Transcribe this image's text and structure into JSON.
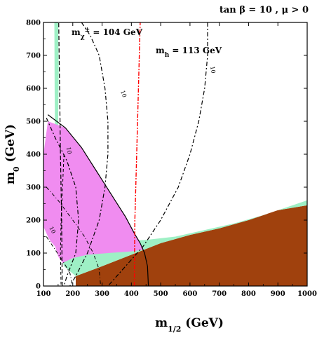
{
  "chart_data": {
    "type": "area",
    "header": "tan β = 10 , μ > 0",
    "xlabel_main": "m",
    "xlabel_sub": "1/2",
    "xlabel_unit": " (GeV)",
    "ylabel_main": "m",
    "ylabel_sub": "0",
    "ylabel_unit": " (GeV)",
    "xlim": [
      100,
      1000
    ],
    "ylim": [
      0,
      800
    ],
    "x_ticks": [
      100,
      200,
      300,
      400,
      500,
      600,
      700,
      800,
      900,
      1000
    ],
    "y_ticks": [
      0,
      100,
      200,
      300,
      400,
      500,
      600,
      700,
      800
    ],
    "colors": {
      "charged_lsp": "#a0410d",
      "relic_density": "#9ef0c5",
      "g_minus_2": "#f08cf0",
      "higgs": "#ff0000",
      "contour": "#000000"
    },
    "annotations": {
      "chargino_main": "m",
      "chargino_sub": "χ",
      "chargino_sup": "±",
      "chargino_value": " = 104 GeV",
      "higgs_main": "m",
      "higgs_sub": "h",
      "higgs_value": "  = 113 GeV"
    },
    "contour_labels": [
      "10",
      "10",
      "10",
      "10"
    ],
    "regions": {
      "charged_lsp": [
        [
          210,
          0
        ],
        [
          210,
          30
        ],
        [
          300,
          60
        ],
        [
          400,
          95
        ],
        [
          500,
          130
        ],
        [
          600,
          155
        ],
        [
          700,
          175
        ],
        [
          800,
          200
        ],
        [
          900,
          230
        ],
        [
          1000,
          245
        ],
        [
          1000,
          0
        ]
      ],
      "relic_density_band": [
        [
          150,
          190
        ],
        [
          180,
          160
        ],
        [
          250,
          145
        ],
        [
          350,
          135
        ],
        [
          450,
          140
        ],
        [
          550,
          150
        ],
        [
          650,
          170
        ],
        [
          750,
          190
        ],
        [
          850,
          215
        ],
        [
          950,
          245
        ],
        [
          1000,
          260
        ],
        [
          1000,
          245
        ],
        [
          900,
          230
        ],
        [
          800,
          200
        ],
        [
          700,
          175
        ],
        [
          600,
          155
        ],
        [
          500,
          130
        ],
        [
          400,
          95
        ],
        [
          300,
          60
        ],
        [
          210,
          30
        ],
        [
          170,
          60
        ],
        [
          150,
          130
        ]
      ],
      "relic_density_strip": [
        [
          137,
          800
        ],
        [
          150,
          800
        ],
        [
          152,
          650
        ],
        [
          150,
          500
        ],
        [
          150,
          350
        ],
        [
          145,
          200
        ],
        [
          137,
          180
        ],
        [
          140,
          400
        ],
        [
          138,
          600
        ]
      ],
      "g_minus_2": [
        [
          115,
          500
        ],
        [
          175,
          480
        ],
        [
          230,
          420
        ],
        [
          280,
          350
        ],
        [
          330,
          280
        ],
        [
          380,
          210
        ],
        [
          410,
          160
        ],
        [
          430,
          130
        ],
        [
          440,
          110
        ],
        [
          400,
          105
        ],
        [
          320,
          100
        ],
        [
          250,
          95
        ],
        [
          200,
          85
        ],
        [
          165,
          70
        ],
        [
          150,
          90
        ],
        [
          140,
          120
        ],
        [
          125,
          135
        ],
        [
          115,
          150
        ],
        [
          100,
          180
        ],
        [
          100,
          400
        ]
      ]
    },
    "lines": {
      "chargino_104": [
        [
          164,
          0
        ],
        [
          162,
          200
        ],
        [
          158,
          400
        ],
        [
          155,
          600
        ],
        [
          152,
          800
        ]
      ],
      "higgs_113": [
        [
          410,
          0
        ],
        [
          412,
          200
        ],
        [
          418,
          400
        ],
        [
          424,
          600
        ],
        [
          430,
          800
        ]
      ],
      "g2_boundary": [
        [
          115,
          520
        ],
        [
          175,
          480
        ],
        [
          230,
          420
        ],
        [
          280,
          350
        ],
        [
          330,
          280
        ],
        [
          380,
          210
        ],
        [
          410,
          160
        ],
        [
          430,
          130
        ],
        [
          445,
          100
        ],
        [
          455,
          60
        ],
        [
          458,
          0
        ]
      ],
      "contour_inner": [
        [
          110,
          150
        ],
        [
          140,
          110
        ],
        [
          170,
          70
        ],
        [
          190,
          40
        ],
        [
          200,
          0
        ]
      ],
      "contour_a": [
        [
          110,
          300
        ],
        [
          150,
          260
        ],
        [
          200,
          200
        ],
        [
          240,
          150
        ],
        [
          270,
          100
        ],
        [
          290,
          50
        ],
        [
          295,
          0
        ]
      ],
      "contour_b": [
        [
          110,
          510
        ],
        [
          140,
          450
        ],
        [
          180,
          380
        ],
        [
          210,
          300
        ],
        [
          220,
          200
        ],
        [
          210,
          100
        ],
        [
          180,
          30
        ],
        [
          170,
          0
        ]
      ],
      "contour_c": [
        [
          230,
          800
        ],
        [
          260,
          760
        ],
        [
          290,
          700
        ],
        [
          310,
          600
        ],
        [
          320,
          500
        ],
        [
          320,
          400
        ],
        [
          310,
          300
        ],
        [
          290,
          200
        ],
        [
          250,
          100
        ],
        [
          210,
          30
        ],
        [
          190,
          0
        ]
      ],
      "contour_d": [
        [
          660,
          800
        ],
        [
          660,
          700
        ],
        [
          650,
          600
        ],
        [
          630,
          500
        ],
        [
          600,
          400
        ],
        [
          560,
          300
        ],
        [
          500,
          200
        ],
        [
          440,
          120
        ],
        [
          380,
          60
        ],
        [
          340,
          20
        ],
        [
          320,
          0
        ]
      ],
      "chargino_dash": [
        [
          170,
          400
        ],
        [
          165,
          300
        ],
        [
          160,
          200
        ],
        [
          158,
          100
        ],
        [
          160,
          0
        ]
      ]
    }
  }
}
